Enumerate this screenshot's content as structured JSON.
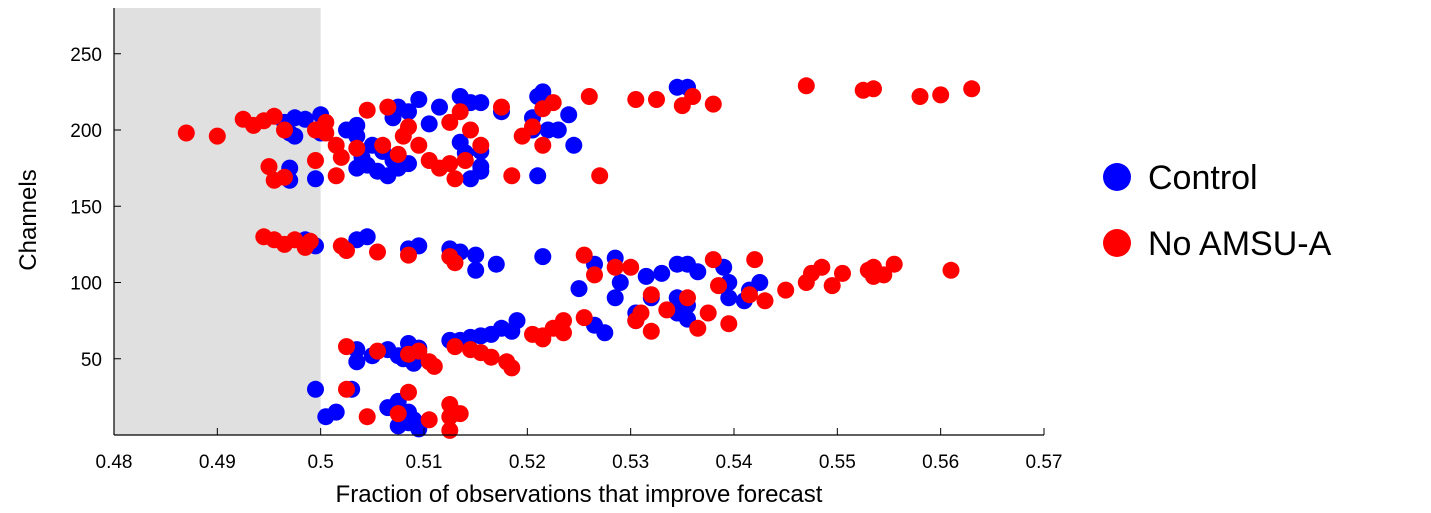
{
  "chart_data": {
    "type": "scatter",
    "title": "",
    "xlabel": "Fraction of observations that improve forecast",
    "ylabel": "Channels",
    "xlim": [
      0.48,
      0.57
    ],
    "ylim": [
      0,
      280
    ],
    "xticks": [
      "0.48",
      "0.49",
      "0.5",
      "0.51",
      "0.52",
      "0.53",
      "0.54",
      "0.55",
      "0.56",
      "0.57"
    ],
    "yticks": [
      "50",
      "100",
      "150",
      "200",
      "250"
    ],
    "shaded_region": {
      "x_from": 0.48,
      "x_to": 0.5,
      "color": "#e0e0e0"
    },
    "legend_position": "right",
    "grid": false,
    "series": [
      {
        "name": "Control",
        "color": "#0000ff",
        "points": [
          [
            0.4965,
            205
          ],
          [
            0.4975,
            208
          ],
          [
            0.4985,
            207
          ],
          [
            0.497,
            198
          ],
          [
            0.4975,
            196
          ],
          [
            0.5,
            210
          ],
          [
            0.5,
            198
          ],
          [
            0.5025,
            200
          ],
          [
            0.5035,
            196
          ],
          [
            0.5035,
            203
          ],
          [
            0.504,
            182
          ],
          [
            0.5035,
            175
          ],
          [
            0.505,
            190
          ],
          [
            0.506,
            186
          ],
          [
            0.507,
            180
          ],
          [
            0.5045,
            177
          ],
          [
            0.5055,
            173
          ],
          [
            0.5065,
            170
          ],
          [
            0.5075,
            175
          ],
          [
            0.5085,
            178
          ],
          [
            0.507,
            208
          ],
          [
            0.5075,
            215
          ],
          [
            0.5085,
            212
          ],
          [
            0.5095,
            220
          ],
          [
            0.5105,
            204
          ],
          [
            0.5115,
            215
          ],
          [
            0.5135,
            222
          ],
          [
            0.5145,
            218
          ],
          [
            0.5135,
            192
          ],
          [
            0.514,
            185
          ],
          [
            0.5155,
            186
          ],
          [
            0.5155,
            176
          ],
          [
            0.5145,
            168
          ],
          [
            0.5155,
            173
          ],
          [
            0.5155,
            218
          ],
          [
            0.5175,
            212
          ],
          [
            0.5205,
            208
          ],
          [
            0.5205,
            200
          ],
          [
            0.521,
            222
          ],
          [
            0.5215,
            225
          ],
          [
            0.522,
            200
          ],
          [
            0.523,
            200
          ],
          [
            0.524,
            210
          ],
          [
            0.5245,
            190
          ],
          [
            0.521,
            170
          ],
          [
            0.497,
            175
          ],
          [
            0.497,
            167
          ],
          [
            0.4995,
            168
          ],
          [
            0.4985,
            128
          ],
          [
            0.4995,
            124
          ],
          [
            0.5035,
            128
          ],
          [
            0.5045,
            130
          ],
          [
            0.5085,
            122
          ],
          [
            0.5095,
            124
          ],
          [
            0.5125,
            122
          ],
          [
            0.5135,
            120
          ],
          [
            0.515,
            118
          ],
          [
            0.515,
            108
          ],
          [
            0.517,
            112
          ],
          [
            0.5215,
            117
          ],
          [
            0.525,
            96
          ],
          [
            0.5265,
            112
          ],
          [
            0.5285,
            116
          ],
          [
            0.529,
            100
          ],
          [
            0.5285,
            90
          ],
          [
            0.5305,
            80
          ],
          [
            0.5305,
            75
          ],
          [
            0.532,
            90
          ],
          [
            0.5315,
            104
          ],
          [
            0.533,
            106
          ],
          [
            0.5345,
            112
          ],
          [
            0.5355,
            112
          ],
          [
            0.5365,
            107
          ],
          [
            0.5345,
            90
          ],
          [
            0.5355,
            85
          ],
          [
            0.5345,
            80
          ],
          [
            0.5355,
            76
          ],
          [
            0.539,
            110
          ],
          [
            0.5395,
            100
          ],
          [
            0.5395,
            90
          ],
          [
            0.541,
            88
          ],
          [
            0.5415,
            95
          ],
          [
            0.5425,
            100
          ],
          [
            0.5345,
            228
          ],
          [
            0.5355,
            228
          ],
          [
            0.5035,
            56
          ],
          [
            0.5035,
            48
          ],
          [
            0.505,
            52
          ],
          [
            0.5065,
            56
          ],
          [
            0.5075,
            52
          ],
          [
            0.5085,
            60
          ],
          [
            0.508,
            50
          ],
          [
            0.5095,
            57
          ],
          [
            0.509,
            47
          ],
          [
            0.5125,
            62
          ],
          [
            0.5135,
            62
          ],
          [
            0.5145,
            64
          ],
          [
            0.5155,
            65
          ],
          [
            0.5165,
            66
          ],
          [
            0.5175,
            70
          ],
          [
            0.5185,
            68
          ],
          [
            0.519,
            75
          ],
          [
            0.5265,
            72
          ],
          [
            0.5275,
            67
          ],
          [
            0.4995,
            30
          ],
          [
            0.5005,
            12
          ],
          [
            0.5015,
            15
          ],
          [
            0.503,
            30
          ],
          [
            0.5065,
            18
          ],
          [
            0.5075,
            22
          ],
          [
            0.5085,
            15
          ],
          [
            0.509,
            10
          ],
          [
            0.5075,
            6
          ],
          [
            0.5095,
            4
          ],
          [
            0.5085,
            8
          ]
        ]
      },
      {
        "name": "No AMSU-A",
        "color": "#ff0000",
        "points": [
          [
            0.487,
            198
          ],
          [
            0.49,
            196
          ],
          [
            0.4925,
            207
          ],
          [
            0.4935,
            203
          ],
          [
            0.4945,
            206
          ],
          [
            0.4955,
            209
          ],
          [
            0.4965,
            200
          ],
          [
            0.495,
            176
          ],
          [
            0.4955,
            167
          ],
          [
            0.4965,
            169
          ],
          [
            0.4995,
            180
          ],
          [
            0.4995,
            200
          ],
          [
            0.5005,
            205
          ],
          [
            0.5015,
            190
          ],
          [
            0.502,
            182
          ],
          [
            0.5035,
            188
          ],
          [
            0.5045,
            213
          ],
          [
            0.5065,
            215
          ],
          [
            0.506,
            190
          ],
          [
            0.5075,
            184
          ],
          [
            0.508,
            196
          ],
          [
            0.5085,
            202
          ],
          [
            0.5095,
            190
          ],
          [
            0.5105,
            180
          ],
          [
            0.5115,
            175
          ],
          [
            0.5125,
            178
          ],
          [
            0.513,
            168
          ],
          [
            0.514,
            180
          ],
          [
            0.5125,
            205
          ],
          [
            0.5135,
            212
          ],
          [
            0.5145,
            200
          ],
          [
            0.5155,
            190
          ],
          [
            0.5175,
            215
          ],
          [
            0.5185,
            170
          ],
          [
            0.5195,
            196
          ],
          [
            0.5205,
            202
          ],
          [
            0.5215,
            190
          ],
          [
            0.5215,
            214
          ],
          [
            0.5225,
            218
          ],
          [
            0.526,
            222
          ],
          [
            0.527,
            170
          ],
          [
            0.5305,
            220
          ],
          [
            0.5325,
            220
          ],
          [
            0.535,
            216
          ],
          [
            0.536,
            222
          ],
          [
            0.538,
            217
          ],
          [
            0.547,
            229
          ],
          [
            0.5525,
            226
          ],
          [
            0.5535,
            227
          ],
          [
            0.558,
            222
          ],
          [
            0.56,
            223
          ],
          [
            0.563,
            227
          ],
          [
            0.5015,
            170
          ],
          [
            0.5005,
            198
          ],
          [
            0.4945,
            130
          ],
          [
            0.4955,
            128
          ],
          [
            0.4965,
            125
          ],
          [
            0.4975,
            128
          ],
          [
            0.499,
            127
          ],
          [
            0.4985,
            123
          ],
          [
            0.502,
            124
          ],
          [
            0.5025,
            121
          ],
          [
            0.5055,
            120
          ],
          [
            0.5085,
            118
          ],
          [
            0.5125,
            117
          ],
          [
            0.513,
            113
          ],
          [
            0.5255,
            118
          ],
          [
            0.5285,
            110
          ],
          [
            0.5265,
            105
          ],
          [
            0.53,
            110
          ],
          [
            0.532,
            92
          ],
          [
            0.531,
            80
          ],
          [
            0.5305,
            75
          ],
          [
            0.532,
            68
          ],
          [
            0.5335,
            82
          ],
          [
            0.5355,
            90
          ],
          [
            0.5365,
            70
          ],
          [
            0.5375,
            80
          ],
          [
            0.538,
            115
          ],
          [
            0.5385,
            98
          ],
          [
            0.5395,
            73
          ],
          [
            0.542,
            115
          ],
          [
            0.5415,
            92
          ],
          [
            0.543,
            88
          ],
          [
            0.545,
            95
          ],
          [
            0.547,
            100
          ],
          [
            0.5475,
            106
          ],
          [
            0.5485,
            110
          ],
          [
            0.5495,
            98
          ],
          [
            0.5505,
            106
          ],
          [
            0.553,
            108
          ],
          [
            0.5535,
            104
          ],
          [
            0.5545,
            105
          ],
          [
            0.5555,
            112
          ],
          [
            0.561,
            108
          ],
          [
            0.5535,
            110
          ],
          [
            0.5025,
            58
          ],
          [
            0.5055,
            55
          ],
          [
            0.5085,
            53
          ],
          [
            0.5095,
            55
          ],
          [
            0.5105,
            48
          ],
          [
            0.511,
            45
          ],
          [
            0.513,
            58
          ],
          [
            0.5145,
            56
          ],
          [
            0.5155,
            54
          ],
          [
            0.5165,
            51
          ],
          [
            0.518,
            48
          ],
          [
            0.5185,
            44
          ],
          [
            0.5205,
            66
          ],
          [
            0.5215,
            65
          ],
          [
            0.5225,
            70
          ],
          [
            0.5235,
            75
          ],
          [
            0.5235,
            67
          ],
          [
            0.5255,
            77
          ],
          [
            0.5215,
            63
          ],
          [
            0.5025,
            30
          ],
          [
            0.5045,
            12
          ],
          [
            0.5075,
            14
          ],
          [
            0.5085,
            28
          ],
          [
            0.5105,
            10
          ],
          [
            0.5125,
            20
          ],
          [
            0.5125,
            12
          ],
          [
            0.5135,
            14
          ],
          [
            0.5125,
            3
          ]
        ]
      }
    ]
  }
}
